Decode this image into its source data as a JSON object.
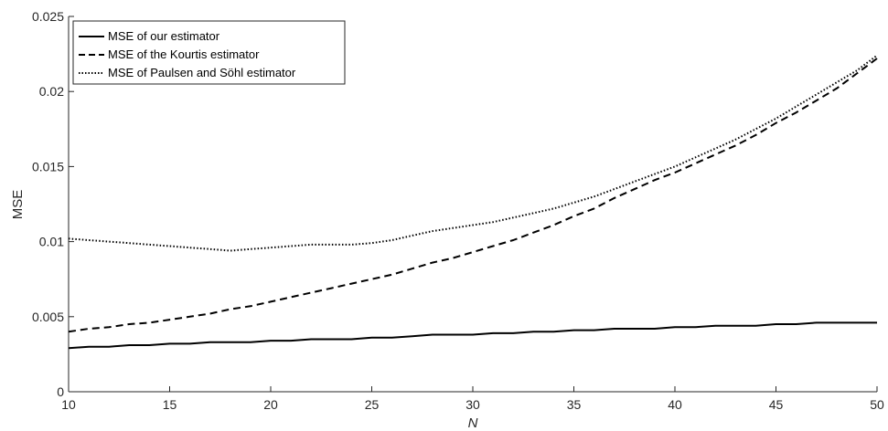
{
  "chart_data": {
    "type": "line",
    "title": "",
    "xlabel": "N",
    "ylabel": "MSE",
    "xlim": [
      10,
      50
    ],
    "ylim": [
      0,
      0.025
    ],
    "x_ticks": [
      10,
      15,
      20,
      25,
      30,
      35,
      40,
      45,
      50
    ],
    "x_tick_labels": [
      "10",
      "15",
      "20",
      "25",
      "30",
      "35",
      "40",
      "45",
      "50"
    ],
    "y_ticks": [
      0,
      0.005,
      0.01,
      0.015,
      0.02,
      0.025
    ],
    "y_tick_labels": [
      "0",
      "0.005",
      "0.01",
      "0.015",
      "0.02",
      "0.025"
    ],
    "grid": false,
    "legend_position": "top-left",
    "x": [
      10,
      11,
      12,
      13,
      14,
      15,
      16,
      17,
      18,
      19,
      20,
      21,
      22,
      23,
      24,
      25,
      26,
      27,
      28,
      29,
      30,
      31,
      32,
      33,
      34,
      35,
      36,
      37,
      38,
      39,
      40,
      41,
      42,
      43,
      44,
      45,
      46,
      47,
      48,
      49,
      50
    ],
    "series": [
      {
        "name": "MSE of our estimator",
        "style": "solid",
        "color": "#000000",
        "values": [
          0.0029,
          0.003,
          0.003,
          0.0031,
          0.0031,
          0.0032,
          0.0032,
          0.0033,
          0.0033,
          0.0033,
          0.0034,
          0.0034,
          0.0035,
          0.0035,
          0.0035,
          0.0036,
          0.0036,
          0.0037,
          0.0038,
          0.0038,
          0.0038,
          0.0039,
          0.0039,
          0.004,
          0.004,
          0.0041,
          0.0041,
          0.0042,
          0.0042,
          0.0042,
          0.0043,
          0.0043,
          0.0044,
          0.0044,
          0.0044,
          0.0045,
          0.0045,
          0.0046,
          0.0046,
          0.0046,
          0.0046
        ]
      },
      {
        "name": "MSE of the Kourtis estimator",
        "style": "dashed",
        "color": "#000000",
        "values": [
          0.004,
          0.0042,
          0.0043,
          0.0045,
          0.0046,
          0.0048,
          0.005,
          0.0052,
          0.0055,
          0.0057,
          0.006,
          0.0063,
          0.0066,
          0.0069,
          0.0072,
          0.0075,
          0.0078,
          0.0082,
          0.0086,
          0.0089,
          0.0093,
          0.0097,
          0.0101,
          0.0106,
          0.0111,
          0.0117,
          0.0122,
          0.0129,
          0.0135,
          0.0141,
          0.0146,
          0.0152,
          0.0158,
          0.0164,
          0.0171,
          0.0179,
          0.0186,
          0.0194,
          0.0202,
          0.0212,
          0.0222
        ]
      },
      {
        "name": "MSE of Paulsen and Söhl estimator",
        "style": "dotted",
        "color": "#000000",
        "values": [
          0.0102,
          0.0101,
          0.01,
          0.0099,
          0.0098,
          0.0097,
          0.0096,
          0.0095,
          0.0094,
          0.0095,
          0.0096,
          0.0097,
          0.0098,
          0.0098,
          0.0098,
          0.0099,
          0.0101,
          0.0104,
          0.0107,
          0.0109,
          0.0111,
          0.0113,
          0.0116,
          0.0119,
          0.0122,
          0.0126,
          0.013,
          0.0135,
          0.014,
          0.0145,
          0.015,
          0.0156,
          0.0162,
          0.0168,
          0.0175,
          0.0182,
          0.019,
          0.0198,
          0.0206,
          0.0214,
          0.0224
        ]
      }
    ]
  }
}
